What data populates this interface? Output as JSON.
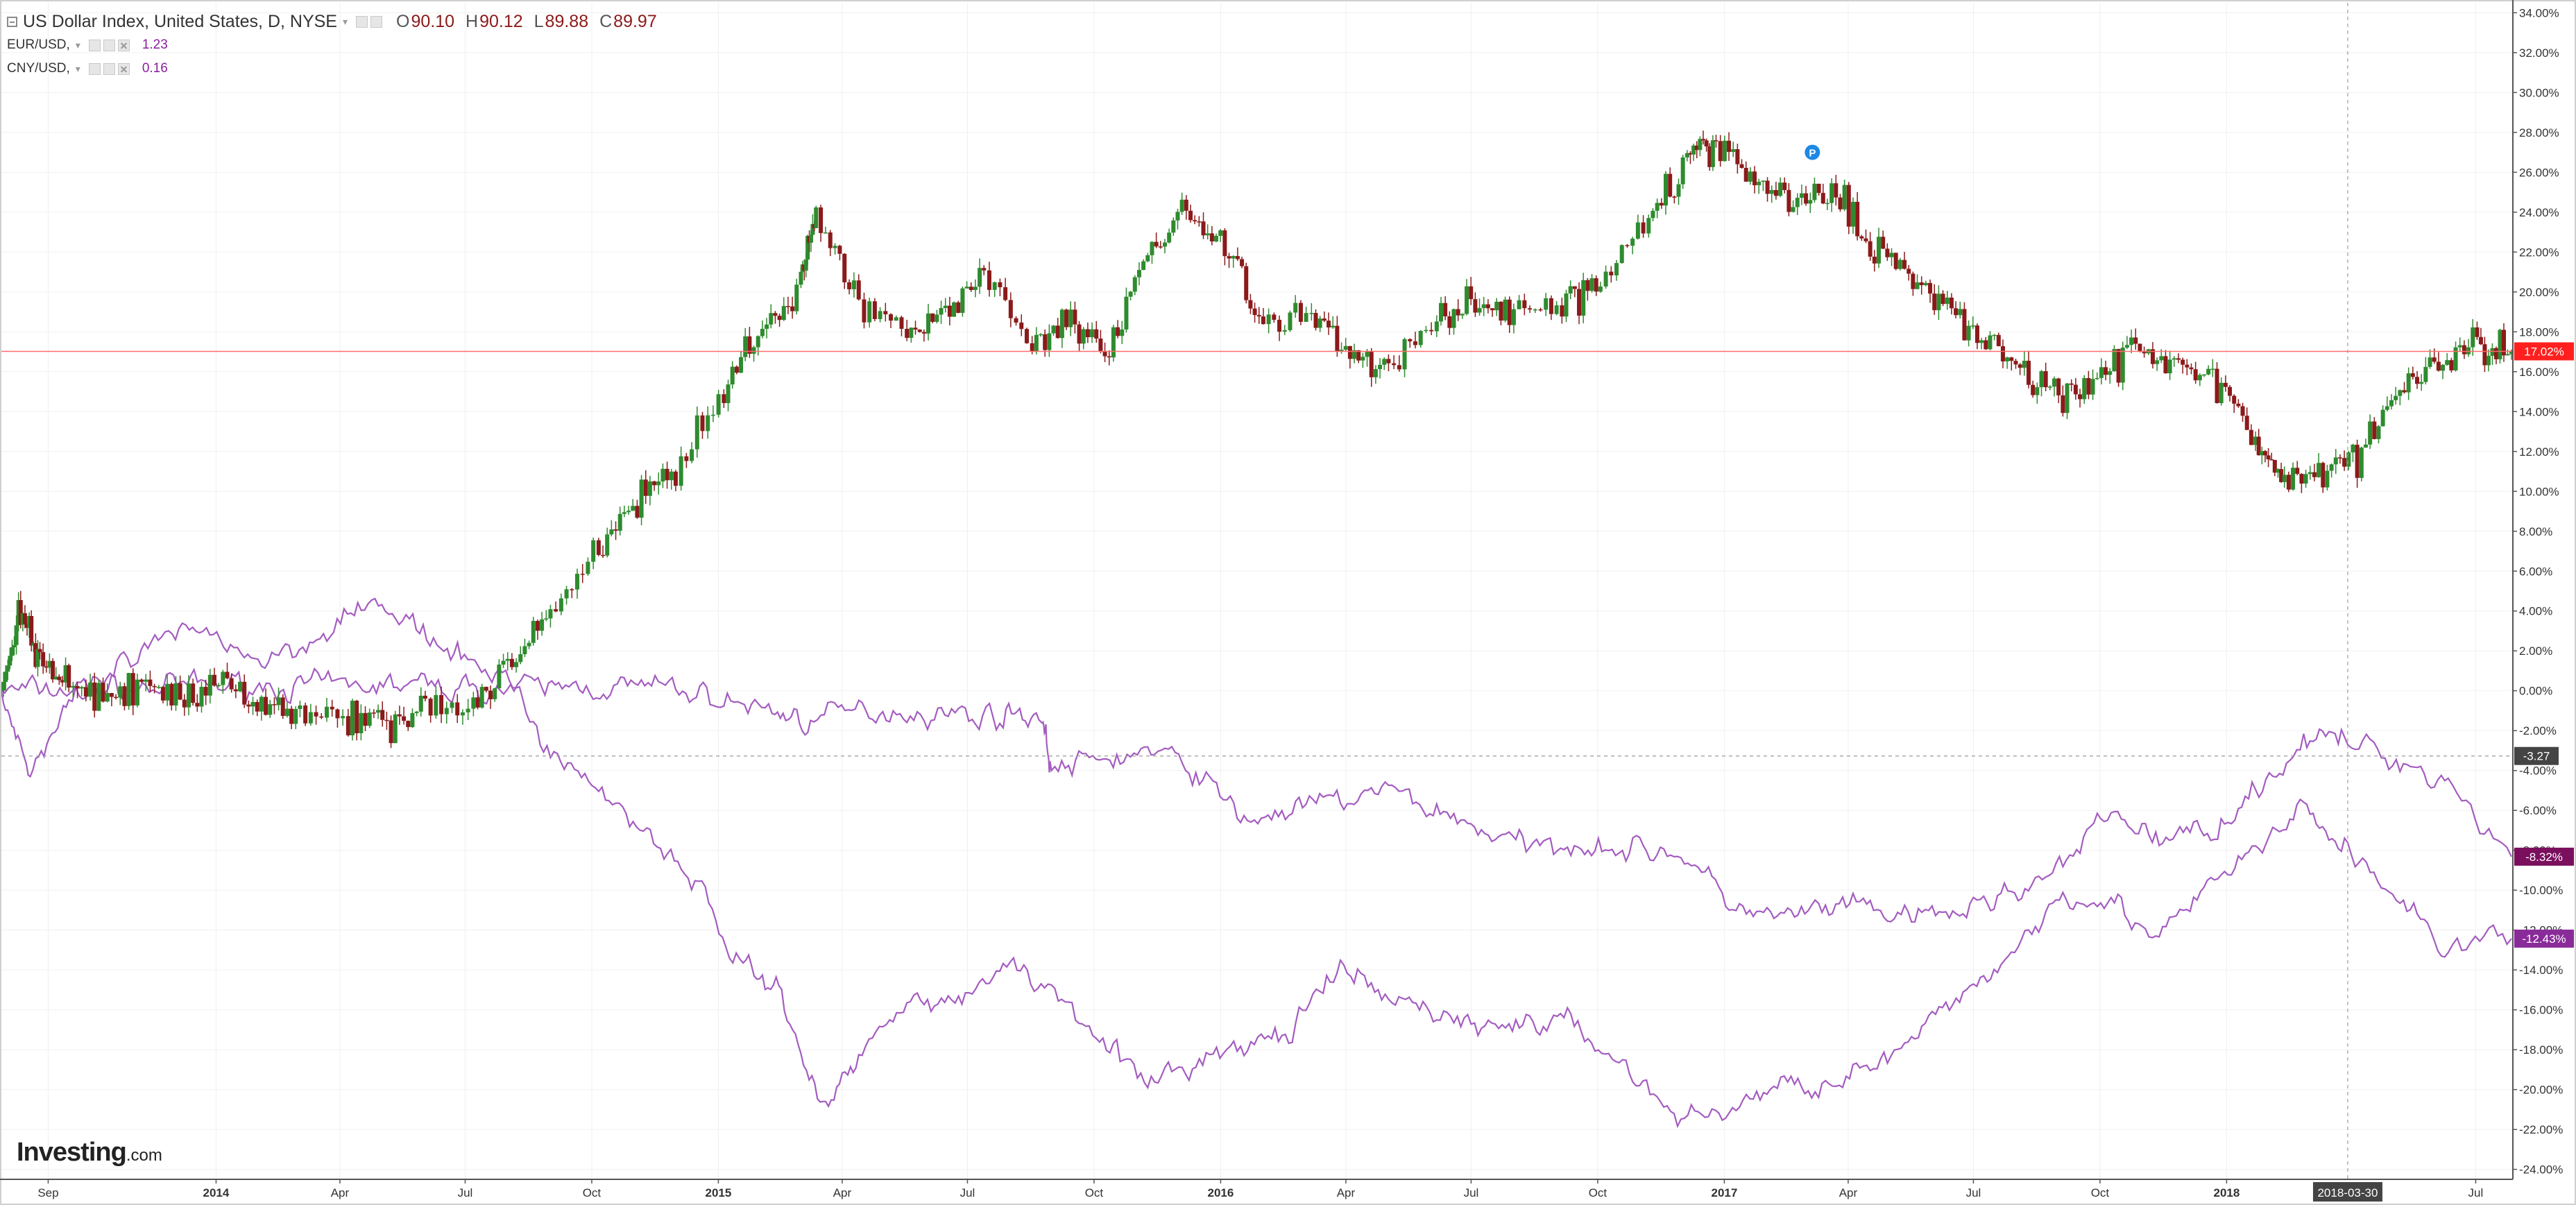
{
  "legend": {
    "main": {
      "title": "US Dollar Index, United States, D, NYSE",
      "open_label": "O",
      "open": "90.10",
      "high_label": "H",
      "high": "90.12",
      "low_label": "L",
      "low": "89.88",
      "close_label": "C",
      "close": "89.97"
    },
    "overlays": [
      {
        "label": "EUR/USD,",
        "value": "1.23",
        "color": "#8b1e9e"
      },
      {
        "label": "CNY/USD,",
        "value": "0.16",
        "color": "#8b1e9e"
      }
    ]
  },
  "brand": {
    "name": "Investing",
    "suffix": ".com"
  },
  "colors": {
    "up": "#2e8b2e",
    "down": "#8b1a1a",
    "overlay_line": "#a45cc0",
    "price_line": "#ff6b6b",
    "badge_main": "#ff1f1f",
    "badge_eur": "#7a0f5e",
    "badge_cny": "#8a2b9a",
    "badge_cross": "#444444",
    "grid": "#f0f0f0",
    "axis_text": "#333333"
  },
  "chart_data": {
    "type": "line",
    "mode": "percent_change",
    "ylim": [
      -24.5,
      34.5
    ],
    "xlim": [
      "2013-07-29",
      "2018-07-27"
    ],
    "yticks": [
      "34.00%",
      "32.00%",
      "30.00%",
      "28.00%",
      "26.00%",
      "24.00%",
      "22.00%",
      "20.00%",
      "18.00%",
      "16.00%",
      "14.00%",
      "12.00%",
      "10.00%",
      "8.00%",
      "6.00%",
      "4.00%",
      "2.00%",
      "0.00%",
      "-2.00%",
      "-4.00%",
      "-6.00%",
      "-8.00%",
      "-10.00%",
      "-12.00%",
      "-14.00%",
      "-16.00%",
      "-18.00%",
      "-20.00%",
      "-22.00%",
      "-24.00%"
    ],
    "ytick_values": [
      34,
      32,
      30,
      28,
      26,
      24,
      22,
      20,
      18,
      16,
      14,
      12,
      10,
      8,
      6,
      4,
      2,
      0,
      -2,
      -4,
      -6,
      -8,
      -10,
      -12,
      -14,
      -16,
      -18,
      -20,
      -22,
      -24
    ],
    "xticks": [
      {
        "date": "2013-09-01",
        "label": "Sep",
        "major": false
      },
      {
        "date": "2014-01-01",
        "label": "2014",
        "major": true
      },
      {
        "date": "2014-04-01",
        "label": "Apr",
        "major": false
      },
      {
        "date": "2014-07-01",
        "label": "Jul",
        "major": false
      },
      {
        "date": "2014-10-01",
        "label": "Oct",
        "major": false
      },
      {
        "date": "2015-01-01",
        "label": "2015",
        "major": true
      },
      {
        "date": "2015-04-01",
        "label": "Apr",
        "major": false
      },
      {
        "date": "2015-07-01",
        "label": "Jul",
        "major": false
      },
      {
        "date": "2015-10-01",
        "label": "Oct",
        "major": false
      },
      {
        "date": "2016-01-01",
        "label": "2016",
        "major": true
      },
      {
        "date": "2016-04-01",
        "label": "Apr",
        "major": false
      },
      {
        "date": "2016-07-01",
        "label": "Jul",
        "major": false
      },
      {
        "date": "2016-10-01",
        "label": "Oct",
        "major": false
      },
      {
        "date": "2017-01-01",
        "label": "2017",
        "major": true
      },
      {
        "date": "2017-04-01",
        "label": "Apr",
        "major": false
      },
      {
        "date": "2017-07-01",
        "label": "Jul",
        "major": false
      },
      {
        "date": "2017-10-01",
        "label": "Oct",
        "major": false
      },
      {
        "date": "2018-01-01",
        "label": "2018",
        "major": true
      },
      {
        "date": "2018-07-01",
        "label": "Jul",
        "major": false
      }
    ],
    "crosshair": {
      "date": "2018-03-30",
      "label": "2018-03-30",
      "value": -3.27,
      "value_label": "-3.27"
    },
    "last_price_badges": [
      {
        "series": "US Dollar Index",
        "value": 17.02,
        "label": "17.02%"
      },
      {
        "series": "EUR/USD",
        "value": -8.32,
        "label": "-8.32%"
      },
      {
        "series": "CNY/USD",
        "value": -12.43,
        "label": "-12.43%"
      }
    ],
    "event_marker": {
      "date": "2017-03-06",
      "value": 27.0,
      "label": "P"
    },
    "series": [
      {
        "name": "US Dollar Index",
        "style": "candlestick",
        "x": [
          "2013-07-29",
          "2013-08-12",
          "2013-08-26",
          "2013-09-16",
          "2013-10-14",
          "2013-11-11",
          "2013-12-09",
          "2014-01-06",
          "2014-02-03",
          "2014-03-03",
          "2014-04-07",
          "2014-05-05",
          "2014-06-02",
          "2014-07-07",
          "2014-08-04",
          "2014-09-01",
          "2014-10-06",
          "2014-11-03",
          "2014-12-01",
          "2015-01-05",
          "2015-02-02",
          "2015-03-02",
          "2015-03-13",
          "2015-04-13",
          "2015-05-18",
          "2015-06-15",
          "2015-07-13",
          "2015-08-17",
          "2015-09-14",
          "2015-10-12",
          "2015-11-09",
          "2015-12-07",
          "2016-01-04",
          "2016-02-01",
          "2016-03-07",
          "2016-04-04",
          "2016-05-02",
          "2016-06-06",
          "2016-07-04",
          "2016-08-01",
          "2016-09-05",
          "2016-10-03",
          "2016-11-07",
          "2016-12-05",
          "2016-12-26",
          "2017-01-23",
          "2017-02-20",
          "2017-03-20",
          "2017-04-17",
          "2017-05-15",
          "2017-06-12",
          "2017-07-10",
          "2017-08-07",
          "2017-09-04",
          "2017-10-02",
          "2017-10-30",
          "2017-11-27",
          "2017-12-25",
          "2018-01-22",
          "2018-02-12",
          "2018-03-12",
          "2018-04-09",
          "2018-05-07",
          "2018-06-04",
          "2018-07-02",
          "2018-07-27"
        ],
        "values": [
          0.0,
          4.5,
          1.5,
          0.5,
          -0.5,
          0.5,
          -0.5,
          0.5,
          -0.5,
          -1.0,
          -1.5,
          -1.5,
          -0.5,
          -0.8,
          1.5,
          4.0,
          7.0,
          9.5,
          11.0,
          15.0,
          18.0,
          20.5,
          24.0,
          19.5,
          18.0,
          19.0,
          21.0,
          17.5,
          18.5,
          17.0,
          22.0,
          24.0,
          22.5,
          18.0,
          19.0,
          17.0,
          16.5,
          18.5,
          19.5,
          19.0,
          19.5,
          20.5,
          24.0,
          26.5,
          27.5,
          25.5,
          24.5,
          25.0,
          22.5,
          21.0,
          19.5,
          17.5,
          16.0,
          15.0,
          16.0,
          17.0,
          16.5,
          15.5,
          12.5,
          10.5,
          11.0,
          12.0,
          15.0,
          16.5,
          17.5,
          17.0
        ]
      },
      {
        "name": "EUR/USD",
        "style": "line",
        "x": [
          "2013-07-29",
          "2013-09-02",
          "2013-10-07",
          "2013-11-11",
          "2013-12-16",
          "2014-01-20",
          "2014-02-24",
          "2014-03-31",
          "2014-05-05",
          "2014-06-09",
          "2014-07-14",
          "2014-08-18",
          "2014-09-22",
          "2014-10-27",
          "2014-12-01",
          "2015-01-05",
          "2015-02-09",
          "2015-03-09",
          "2015-04-13",
          "2015-05-18",
          "2015-06-22",
          "2015-07-27",
          "2015-08-24",
          "2015-08-31",
          "2015-10-05",
          "2015-11-09",
          "2015-12-14",
          "2016-01-18",
          "2016-02-22",
          "2016-03-28",
          "2016-05-02",
          "2016-06-06",
          "2016-07-11",
          "2016-08-15",
          "2016-09-19",
          "2016-10-24",
          "2016-11-28",
          "2017-01-02",
          "2017-02-06",
          "2017-03-13",
          "2017-04-17",
          "2017-05-22",
          "2017-06-26",
          "2017-07-31",
          "2017-09-04",
          "2017-10-09",
          "2017-11-13",
          "2017-12-18",
          "2018-01-22",
          "2018-02-26",
          "2018-03-30",
          "2018-05-07",
          "2018-06-11",
          "2018-07-27"
        ],
        "values": [
          0.0,
          0.0,
          0.2,
          0.1,
          0.3,
          0.3,
          0.2,
          0.2,
          0.3,
          0.2,
          0.1,
          0.1,
          0.2,
          0.2,
          0.1,
          -0.5,
          -1.0,
          -1.5,
          -1.0,
          -1.0,
          -1.2,
          -1.2,
          -1.2,
          -4.0,
          -3.5,
          -3.0,
          -4.0,
          -6.5,
          -6.0,
          -5.5,
          -5.0,
          -6.0,
          -7.0,
          -8.0,
          -7.5,
          -8.0,
          -8.0,
          -10.5,
          -11.5,
          -11.0,
          -11.0,
          -11.5,
          -11.0,
          -10.0,
          -9.0,
          -6.0,
          -7.5,
          -7.0,
          -5.0,
          -2.5,
          -2.5,
          -3.5,
          -4.5,
          -8.32
        ]
      },
      {
        "name": "CNY/USD",
        "style": "line",
        "x": [
          "2013-07-29",
          "2013-08-19",
          "2013-09-16",
          "2013-10-21",
          "2013-11-25",
          "2013-12-30",
          "2014-02-03",
          "2014-03-10",
          "2014-04-14",
          "2014-05-19",
          "2014-06-23",
          "2014-07-28",
          "2014-09-01",
          "2014-10-06",
          "2014-11-10",
          "2014-12-15",
          "2015-01-19",
          "2015-02-16",
          "2015-03-16",
          "2015-04-13",
          "2015-05-18",
          "2015-06-22",
          "2015-07-27",
          "2015-08-31",
          "2015-10-05",
          "2015-11-09",
          "2015-12-14",
          "2016-01-18",
          "2016-02-22",
          "2016-03-28",
          "2016-05-02",
          "2016-06-06",
          "2016-07-11",
          "2016-08-15",
          "2016-09-19",
          "2016-10-24",
          "2016-11-28",
          "2017-01-02",
          "2017-02-06",
          "2017-03-13",
          "2017-04-17",
          "2017-05-22",
          "2017-06-26",
          "2017-07-31",
          "2017-09-04",
          "2017-10-09",
          "2017-11-13",
          "2017-12-18",
          "2018-01-22",
          "2018-02-26",
          "2018-03-30",
          "2018-05-07",
          "2018-06-11",
          "2018-07-27"
        ],
        "values": [
          0.0,
          -4.0,
          -1.0,
          1.0,
          2.5,
          3.0,
          1.5,
          2.5,
          4.5,
          3.5,
          1.5,
          1.0,
          -3.0,
          -5.0,
          -7.0,
          -9.5,
          -14.0,
          -15.0,
          -21.0,
          -18.5,
          -15.0,
          -16.0,
          -13.5,
          -15.0,
          -17.0,
          -20.0,
          -18.5,
          -18.0,
          -17.0,
          -14.0,
          -15.5,
          -16.0,
          -17.0,
          -16.5,
          -17.0,
          -19.0,
          -21.5,
          -21.0,
          -20.0,
          -19.5,
          -19.0,
          -17.5,
          -15.0,
          -13.0,
          -10.0,
          -10.5,
          -12.5,
          -10.0,
          -8.0,
          -6.0,
          -8.0,
          -10.5,
          -13.0,
          -12.43
        ]
      }
    ]
  }
}
